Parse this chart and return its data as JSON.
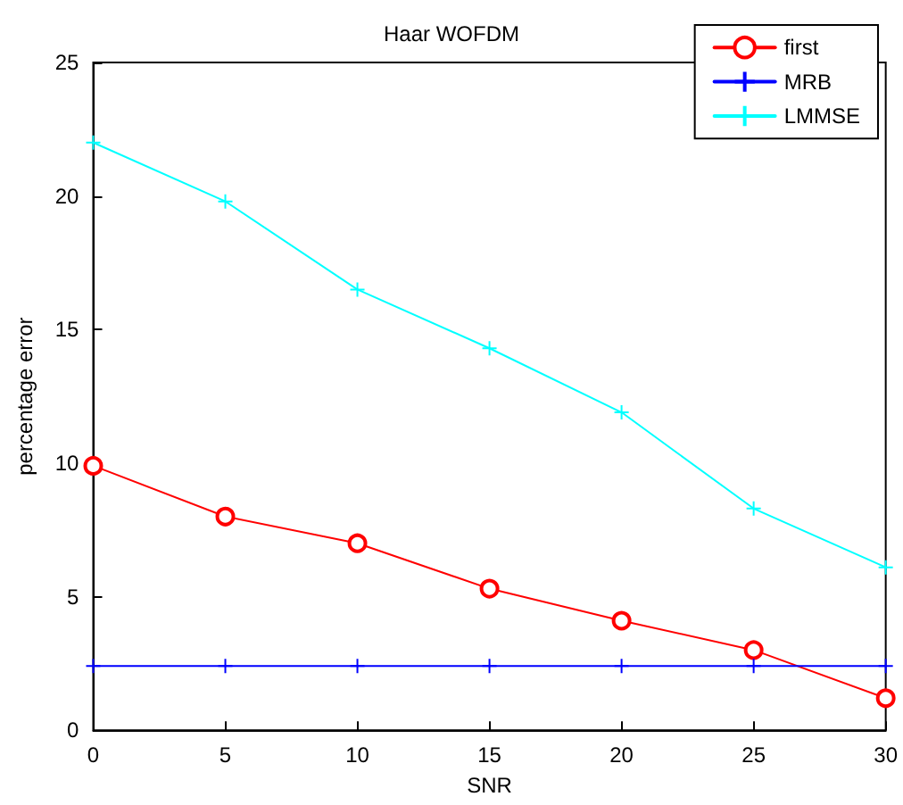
{
  "chart_data": {
    "type": "line",
    "title": "Haar WOFDM",
    "xlabel": "SNR",
    "ylabel": "percentage error",
    "x": [
      0,
      5,
      10,
      15,
      20,
      25,
      30
    ],
    "series": [
      {
        "name": "first",
        "color": "#ff0000",
        "marker": "circle",
        "values": [
          9.9,
          8.0,
          7.0,
          5.3,
          4.1,
          3.0,
          1.2
        ]
      },
      {
        "name": "MRB",
        "color": "#0000ff",
        "marker": "cross",
        "values": [
          2.4,
          2.4,
          2.4,
          2.4,
          2.4,
          2.4,
          2.4
        ]
      },
      {
        "name": "LMMSE",
        "color": "#00ffff",
        "marker": "cross",
        "values": [
          22.0,
          19.8,
          16.5,
          14.3,
          11.9,
          8.3,
          6.1
        ]
      }
    ],
    "xlim": [
      0,
      30
    ],
    "xticks": [
      0,
      5,
      10,
      15,
      20,
      25,
      30
    ],
    "ylim": [
      0,
      25
    ],
    "yticks": [
      0,
      5,
      10,
      15,
      20,
      25
    ],
    "grid": false,
    "legend": "top right",
    "line_style": "solid"
  }
}
